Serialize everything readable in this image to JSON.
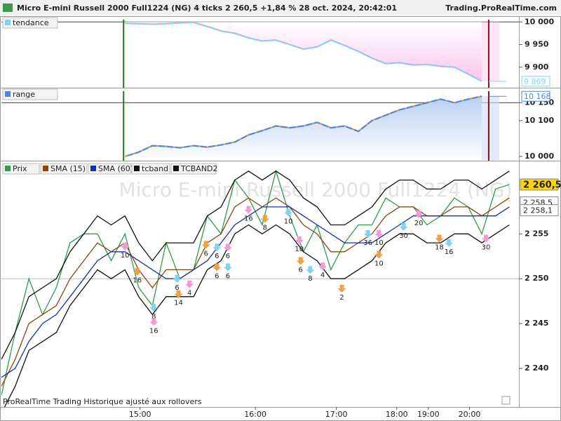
{
  "header": {
    "title": "Micro E-mini Russell 2000 Full1224 (NG) 4 ticks 2 260,5 +1,84 % 28 oct. 2024, 20:42:01",
    "site": "Trading.ProRealTime.com"
  },
  "footer": "ProRealTime Trading  Historique ajusté aux rollovers",
  "chart_data": [
    {
      "type": "line",
      "xlim": [
        0,
        37.7
      ],
      "ylim": [
        9854.8,
        10009.7
      ],
      "yticks": [
        {
          "value": 10000,
          "label": "10 000"
        },
        {
          "value": 9950,
          "label": "9 950"
        },
        {
          "value": 9900,
          "label": "9 900"
        }
      ],
      "last_label": {
        "value": 9869,
        "label": "9 869"
      },
      "series": [
        {
          "name": "tendance",
          "color": "#7fd4f0",
          "color2": "#f39bd8",
          "fill": "#fbd3f1",
          "values": [
            null,
            null,
            null,
            null,
            null,
            null,
            null,
            null,
            null,
            9997,
            9996,
            9995,
            9996,
            9998,
            9999,
            9990,
            9980,
            9975,
            9965,
            9958,
            9960,
            9950,
            9940,
            9945,
            9960,
            9948,
            9935,
            9920,
            9908,
            9910,
            9905,
            9906,
            9902,
            9900,
            9885,
            9869,
            null,
            null
          ]
        }
      ],
      "markers": [
        {
          "x": 8.9,
          "color": "#1a7a1a"
        },
        {
          "x": 35.5,
          "color": "#8b1010"
        }
      ]
    },
    {
      "type": "area",
      "xlim": [
        0,
        37.7
      ],
      "ylim": [
        9988,
        10188
      ],
      "yticks": [
        {
          "value": 10150,
          "label": "10 150"
        },
        {
          "value": 10100,
          "label": "10 100"
        },
        {
          "value": 10000,
          "label": "10 000"
        }
      ],
      "last_label": {
        "value": 10168,
        "label": "10 168"
      },
      "series": [
        {
          "name": "range",
          "color": "#4f86d6",
          "color2": "#f0a040",
          "fill": "#c9dcf7",
          "values": [
            null,
            null,
            null,
            null,
            null,
            null,
            null,
            null,
            null,
            10000,
            10012,
            10030,
            10028,
            10024,
            10030,
            10026,
            10032,
            10040,
            10060,
            10072,
            10085,
            10080,
            10085,
            10095,
            10080,
            10085,
            10070,
            10100,
            10115,
            10130,
            10140,
            10150,
            10160,
            10150,
            10160,
            10168,
            null,
            null
          ]
        }
      ],
      "markers": [
        {
          "x": 8.9,
          "color": "#1a7a1a"
        },
        {
          "x": 35.5,
          "color": "#8b1010"
        }
      ]
    },
    {
      "type": "line",
      "watermark": "Micro E-mini Russell 2000 Full1224 (NG)",
      "xlim": [
        0,
        37.7
      ],
      "ylim": [
        2235.7,
        2263
      ],
      "xticks": [
        {
          "value": 10.1,
          "label": "15:00"
        },
        {
          "value": 18.5,
          "label": "16:00"
        },
        {
          "value": 24.4,
          "label": "17:00"
        },
        {
          "value": 28.8,
          "label": "18:00"
        },
        {
          "value": 31.1,
          "label": "19:00"
        },
        {
          "value": 34.1,
          "label": "20:00"
        }
      ],
      "yticks": [
        {
          "value": 2255,
          "label": "2 255"
        },
        {
          "value": 2250,
          "label": "2 250"
        },
        {
          "value": 2245,
          "label": "2 245"
        },
        {
          "value": 2240,
          "label": "2 240"
        }
      ],
      "hline": 2250,
      "price_tags": [
        {
          "value": 2260.5,
          "label": "2 260,5"
        },
        {
          "value": 2258.5,
          "label": "2 258,5"
        },
        {
          "value": 2258.1,
          "label": "2 258,1"
        }
      ],
      "series": [
        {
          "name": "Prix",
          "color": "#2e9c4a",
          "values": [
            2237,
            2244,
            2250,
            2246,
            2249,
            2254,
            2255,
            2255,
            2252,
            2255,
            2249,
            2247,
            2254,
            2250,
            2251,
            2257,
            2255,
            2261,
            2259,
            2256,
            2262,
            2257,
            2253,
            2256,
            2251,
            2254,
            2256,
            2256,
            2259,
            2258,
            2258,
            2256,
            2257,
            2259,
            2258,
            2255,
            2260,
            2260.5
          ]
        },
        {
          "name": "SMA (15)",
          "color": "#8b4513",
          "values": [
            2238,
            2241,
            2245,
            2246,
            2247,
            2250,
            2252,
            2254,
            2253,
            2254,
            2251,
            2249,
            2251,
            2251,
            2251,
            2254,
            2255,
            2258,
            2259,
            2258,
            2259,
            2258,
            2256,
            2255,
            2253,
            2253,
            2254,
            2255,
            2257,
            2258,
            2258,
            2257,
            2257,
            2258,
            2258,
            2257,
            2258,
            2259
          ]
        },
        {
          "name": "SMA (60)",
          "color": "#1a2fa8",
          "values": [
            2239,
            2240,
            2243,
            2245,
            2246,
            2248,
            2250,
            2252,
            2253,
            2253,
            2252,
            2251,
            2250,
            2250,
            2251,
            2252,
            2254,
            2256,
            2257,
            2258,
            2258,
            2258,
            2257,
            2256,
            2255,
            2254,
            2254,
            2254,
            2255,
            2256,
            2257,
            2257,
            2257,
            2257,
            2257,
            2257,
            2257,
            2258
          ]
        },
        {
          "name": "tcband",
          "color": "#111111",
          "values": [
            2241,
            2244,
            2248,
            2249,
            2250,
            2253,
            2255,
            2257,
            2256,
            2257,
            2254,
            2252,
            2254,
            2254,
            2254,
            2257,
            2258,
            2261,
            2262,
            2261,
            2262,
            2261,
            2259,
            2258,
            2256,
            2256,
            2257,
            2258,
            2260,
            2261,
            2261,
            2260,
            2260,
            2261,
            2261,
            2260,
            2261,
            2262
          ]
        },
        {
          "name": "TCBAND2",
          "color": "#111111",
          "values": [
            2235,
            2238,
            2242,
            2243,
            2244,
            2247,
            2249,
            2251,
            2250,
            2251,
            2248,
            2246,
            2248,
            2248,
            2248,
            2251,
            2252,
            2255,
            2256,
            2255,
            2256,
            2255,
            2253,
            2252,
            2250,
            2250,
            2251,
            2252,
            2254,
            2255,
            2255,
            2254,
            2254,
            2255,
            2255,
            2254,
            2255,
            2256
          ]
        }
      ],
      "annotations": [
        {
          "x": 9.0,
          "y": 2252.6,
          "text": "10"
        },
        {
          "x": 9.9,
          "y": 2249.8,
          "text": "16"
        },
        {
          "x": 11.1,
          "y": 2245.8,
          "text": "8"
        },
        {
          "x": 11.1,
          "y": 2244.2,
          "text": "16"
        },
        {
          "x": 12.9,
          "y": 2247.3,
          "text": "14"
        },
        {
          "x": 12.8,
          "y": 2249.0,
          "text": "6"
        },
        {
          "x": 13.7,
          "y": 2248.4,
          "text": "4"
        },
        {
          "x": 14.9,
          "y": 2252.8,
          "text": "6"
        },
        {
          "x": 15.7,
          "y": 2252.5,
          "text": "6"
        },
        {
          "x": 16.5,
          "y": 2252.5,
          "text": "6"
        },
        {
          "x": 15.7,
          "y": 2250.3,
          "text": "6"
        },
        {
          "x": 16.5,
          "y": 2250.3,
          "text": "6"
        },
        {
          "x": 18.0,
          "y": 2256.7,
          "text": "16"
        },
        {
          "x": 19.2,
          "y": 2255.7,
          "text": "8"
        },
        {
          "x": 20.9,
          "y": 2256.4,
          "text": "10"
        },
        {
          "x": 21.7,
          "y": 2253.3,
          "text": "10"
        },
        {
          "x": 21.8,
          "y": 2251.0,
          "text": "6"
        },
        {
          "x": 22.5,
          "y": 2250.0,
          "text": "8"
        },
        {
          "x": 23.4,
          "y": 2250.4,
          "text": "4"
        },
        {
          "x": 24.8,
          "y": 2247.9,
          "text": "2"
        },
        {
          "x": 26.7,
          "y": 2254.0,
          "text": "36"
        },
        {
          "x": 27.5,
          "y": 2254.0,
          "text": "10"
        },
        {
          "x": 27.5,
          "y": 2251.7,
          "text": "10"
        },
        {
          "x": 29.3,
          "y": 2254.8,
          "text": "30"
        },
        {
          "x": 30.4,
          "y": 2256.2,
          "text": "20"
        },
        {
          "x": 31.9,
          "y": 2253.5,
          "text": "18"
        },
        {
          "x": 32.6,
          "y": 2253.0,
          "text": "16"
        },
        {
          "x": 35.3,
          "y": 2253.5,
          "text": "30"
        }
      ]
    }
  ]
}
